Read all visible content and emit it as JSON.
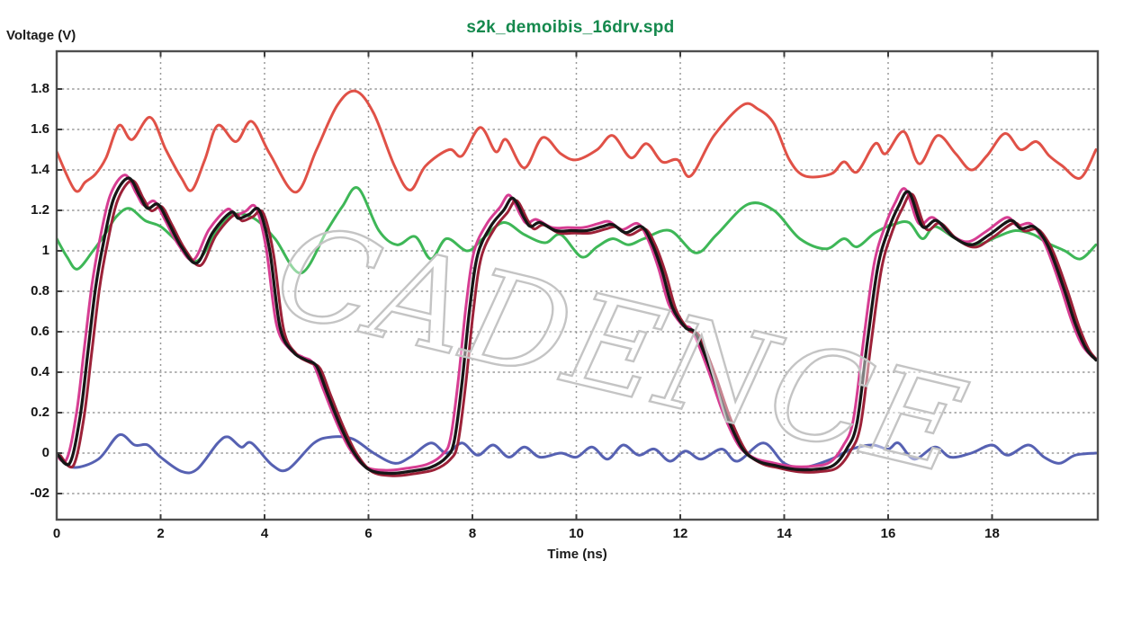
{
  "page": {
    "title": "s2k_demoibis_16drv.spd",
    "y_axis_title": "Voltage (V)",
    "x_axis_title": "Time (ns)",
    "watermark": "CADENCE"
  },
  "colors": {
    "title_green": "#15894d",
    "text": "#1b1b1b",
    "grid": "#8f8f8f",
    "border": "#4f4f4f",
    "watermark_stroke": "#c4c4c4",
    "trace_red": "#e05147",
    "trace_green": "#3eb757",
    "trace_blue": "#5661b2",
    "trace_black": "#161616",
    "trace_magenta": "#d63d92",
    "trace_darkred": "#9c2138"
  },
  "chart_data": {
    "type": "line",
    "title": "s2k_demoibis_16drv.spd",
    "xlabel": "Time (ns)",
    "ylabel": "Voltage (V)",
    "x_range": [
      0,
      20.03
    ],
    "y_range": [
      -0.329,
      1.987
    ],
    "grid": true,
    "legend": "none",
    "x_ticks": [
      {
        "label": "0",
        "value": 0
      },
      {
        "label": "2",
        "value": 2
      },
      {
        "label": "4",
        "value": 4
      },
      {
        "label": "6",
        "value": 6
      },
      {
        "label": "8",
        "value": 8
      },
      {
        "label": "10",
        "value": 10
      },
      {
        "label": "12",
        "value": 12
      },
      {
        "label": "14",
        "value": 14
      },
      {
        "label": "16",
        "value": 16
      },
      {
        "label": "18",
        "value": 18
      }
    ],
    "y_ticks": [
      {
        "label": "1.8",
        "value": 1.8
      },
      {
        "label": "1.6",
        "value": 1.6
      },
      {
        "label": "1.4",
        "value": 1.4
      },
      {
        "label": "1.2",
        "value": 1.2
      },
      {
        "label": "1",
        "value": 1.0
      },
      {
        "label": "0.8",
        "value": 0.8
      },
      {
        "label": "0.6",
        "value": 0.6
      },
      {
        "label": "0.4",
        "value": 0.4
      },
      {
        "label": "0.2",
        "value": 0.2
      },
      {
        "label": "0",
        "value": 0.0
      },
      {
        "label": "-02",
        "value": -0.2
      }
    ],
    "series": [
      {
        "name": "red-upper-trace",
        "color": "#e05147",
        "width": 3,
        "points": [
          [
            0,
            1.49
          ],
          [
            0.35,
            1.3
          ],
          [
            0.55,
            1.34
          ],
          [
            0.75,
            1.38
          ],
          [
            0.95,
            1.46
          ],
          [
            1.2,
            1.62
          ],
          [
            1.45,
            1.55
          ],
          [
            1.8,
            1.66
          ],
          [
            2.1,
            1.5
          ],
          [
            2.4,
            1.36
          ],
          [
            2.6,
            1.3
          ],
          [
            2.85,
            1.45
          ],
          [
            3.1,
            1.62
          ],
          [
            3.45,
            1.54
          ],
          [
            3.75,
            1.64
          ],
          [
            4.1,
            1.48
          ],
          [
            4.6,
            1.29
          ],
          [
            5.0,
            1.5
          ],
          [
            5.4,
            1.72
          ],
          [
            5.75,
            1.79
          ],
          [
            6.1,
            1.68
          ],
          [
            6.5,
            1.42
          ],
          [
            6.8,
            1.3
          ],
          [
            7.1,
            1.42
          ],
          [
            7.55,
            1.5
          ],
          [
            7.8,
            1.47
          ],
          [
            8.15,
            1.61
          ],
          [
            8.45,
            1.49
          ],
          [
            8.65,
            1.55
          ],
          [
            9.0,
            1.41
          ],
          [
            9.35,
            1.56
          ],
          [
            9.7,
            1.48
          ],
          [
            10.0,
            1.45
          ],
          [
            10.4,
            1.5
          ],
          [
            10.7,
            1.57
          ],
          [
            11.05,
            1.46
          ],
          [
            11.35,
            1.53
          ],
          [
            11.65,
            1.44
          ],
          [
            11.95,
            1.45
          ],
          [
            12.2,
            1.37
          ],
          [
            12.65,
            1.57
          ],
          [
            13.2,
            1.72
          ],
          [
            13.5,
            1.7
          ],
          [
            13.8,
            1.63
          ],
          [
            14.1,
            1.45
          ],
          [
            14.4,
            1.37
          ],
          [
            14.9,
            1.38
          ],
          [
            15.15,
            1.44
          ],
          [
            15.4,
            1.39
          ],
          [
            15.75,
            1.53
          ],
          [
            15.95,
            1.48
          ],
          [
            16.3,
            1.59
          ],
          [
            16.6,
            1.43
          ],
          [
            16.95,
            1.57
          ],
          [
            17.3,
            1.48
          ],
          [
            17.6,
            1.4
          ],
          [
            17.9,
            1.47
          ],
          [
            18.25,
            1.58
          ],
          [
            18.55,
            1.5
          ],
          [
            18.85,
            1.54
          ],
          [
            19.1,
            1.47
          ],
          [
            19.35,
            1.42
          ],
          [
            19.7,
            1.36
          ],
          [
            20.0,
            1.5
          ]
        ]
      },
      {
        "name": "green-mid-trace",
        "color": "#3eb757",
        "width": 3,
        "points": [
          [
            0,
            1.06
          ],
          [
            0.2,
            0.97
          ],
          [
            0.4,
            0.91
          ],
          [
            0.7,
            1.0
          ],
          [
            0.95,
            1.09
          ],
          [
            1.15,
            1.17
          ],
          [
            1.4,
            1.21
          ],
          [
            1.7,
            1.15
          ],
          [
            2.0,
            1.12
          ],
          [
            2.3,
            1.05
          ],
          [
            2.7,
            0.95
          ],
          [
            3.1,
            1.11
          ],
          [
            3.4,
            1.18
          ],
          [
            3.8,
            1.16
          ],
          [
            4.2,
            1.06
          ],
          [
            4.7,
            0.89
          ],
          [
            5.2,
            1.1
          ],
          [
            5.5,
            1.22
          ],
          [
            5.8,
            1.31
          ],
          [
            6.2,
            1.1
          ],
          [
            6.55,
            1.03
          ],
          [
            6.9,
            1.07
          ],
          [
            7.2,
            0.96
          ],
          [
            7.5,
            1.06
          ],
          [
            7.9,
            1.0
          ],
          [
            8.2,
            1.06
          ],
          [
            8.6,
            1.14
          ],
          [
            9.0,
            1.08
          ],
          [
            9.4,
            1.04
          ],
          [
            9.7,
            1.08
          ],
          [
            10.1,
            0.97
          ],
          [
            10.4,
            1.02
          ],
          [
            10.7,
            1.06
          ],
          [
            11.0,
            1.03
          ],
          [
            11.3,
            1.06
          ],
          [
            11.8,
            1.1
          ],
          [
            12.3,
            0.99
          ],
          [
            12.7,
            1.08
          ],
          [
            13.3,
            1.23
          ],
          [
            13.8,
            1.2
          ],
          [
            14.3,
            1.06
          ],
          [
            14.8,
            1.01
          ],
          [
            15.15,
            1.06
          ],
          [
            15.4,
            1.02
          ],
          [
            15.75,
            1.09
          ],
          [
            16.1,
            1.13
          ],
          [
            16.4,
            1.14
          ],
          [
            16.66,
            1.06
          ],
          [
            16.9,
            1.12
          ],
          [
            17.3,
            1.06
          ],
          [
            17.7,
            1.03
          ],
          [
            18.1,
            1.07
          ],
          [
            18.45,
            1.1
          ],
          [
            18.8,
            1.08
          ],
          [
            19.05,
            1.04
          ],
          [
            19.4,
            1.0
          ],
          [
            19.7,
            0.96
          ],
          [
            20.0,
            1.03
          ]
        ]
      },
      {
        "name": "blue-near-zero-trace",
        "color": "#5661b2",
        "width": 3,
        "points": [
          [
            0,
            0.0
          ],
          [
            0.3,
            -0.07
          ],
          [
            0.8,
            -0.03
          ],
          [
            1.2,
            0.09
          ],
          [
            1.5,
            0.04
          ],
          [
            1.75,
            0.04
          ],
          [
            2.0,
            -0.02
          ],
          [
            2.4,
            -0.09
          ],
          [
            2.7,
            -0.08
          ],
          [
            3.1,
            0.05
          ],
          [
            3.3,
            0.08
          ],
          [
            3.55,
            0.03
          ],
          [
            3.75,
            0.05
          ],
          [
            4.15,
            -0.06
          ],
          [
            4.45,
            -0.08
          ],
          [
            4.95,
            0.05
          ],
          [
            5.3,
            0.08
          ],
          [
            5.7,
            0.07
          ],
          [
            6.1,
            0.0
          ],
          [
            6.5,
            -0.05
          ],
          [
            6.8,
            -0.02
          ],
          [
            7.2,
            0.05
          ],
          [
            7.5,
            0.0
          ],
          [
            7.8,
            0.05
          ],
          [
            8.1,
            -0.01
          ],
          [
            8.4,
            0.04
          ],
          [
            8.7,
            -0.02
          ],
          [
            9.0,
            0.03
          ],
          [
            9.3,
            -0.02
          ],
          [
            9.7,
            0.0
          ],
          [
            10.0,
            -0.02
          ],
          [
            10.3,
            0.03
          ],
          [
            10.6,
            -0.03
          ],
          [
            10.9,
            0.04
          ],
          [
            11.2,
            -0.01
          ],
          [
            11.5,
            0.02
          ],
          [
            11.8,
            -0.04
          ],
          [
            12.1,
            0.01
          ],
          [
            12.4,
            -0.03
          ],
          [
            12.8,
            0.02
          ],
          [
            13.1,
            -0.04
          ],
          [
            13.6,
            0.05
          ],
          [
            14.0,
            -0.05
          ],
          [
            14.4,
            -0.07
          ],
          [
            14.9,
            -0.03
          ],
          [
            15.3,
            0.02
          ],
          [
            15.7,
            0.04
          ],
          [
            16.0,
            0.02
          ],
          [
            16.2,
            0.05
          ],
          [
            16.5,
            -0.03
          ],
          [
            16.9,
            0.03
          ],
          [
            17.2,
            -0.02
          ],
          [
            17.6,
            0.0
          ],
          [
            18.0,
            0.04
          ],
          [
            18.3,
            -0.01
          ],
          [
            18.7,
            0.04
          ],
          [
            19.0,
            -0.02
          ],
          [
            19.3,
            -0.05
          ],
          [
            19.6,
            -0.01
          ],
          [
            20.0,
            0.0
          ]
        ]
      },
      {
        "name": "switching-bundle",
        "strokes": [
          {
            "color": "#d63d92",
            "dt": -0.07,
            "dv": 0.015,
            "width": 3
          },
          {
            "color": "#9c2138",
            "dt": 0.07,
            "dv": -0.012,
            "width": 3
          },
          {
            "color": "#161616",
            "dt": 0,
            "dv": 0,
            "width": 3.3
          }
        ],
        "points": [
          [
            0,
            0.0
          ],
          [
            0.25,
            -0.05
          ],
          [
            0.45,
            0.18
          ],
          [
            0.6,
            0.5
          ],
          [
            0.75,
            0.82
          ],
          [
            0.9,
            1.04
          ],
          [
            1.1,
            1.26
          ],
          [
            1.38,
            1.36
          ],
          [
            1.6,
            1.27
          ],
          [
            1.75,
            1.21
          ],
          [
            1.95,
            1.23
          ],
          [
            2.15,
            1.14
          ],
          [
            2.4,
            1.02
          ],
          [
            2.7,
            0.94
          ],
          [
            3.0,
            1.09
          ],
          [
            3.35,
            1.19
          ],
          [
            3.5,
            1.16
          ],
          [
            3.7,
            1.18
          ],
          [
            3.9,
            1.2
          ],
          [
            4.1,
            1.0
          ],
          [
            4.3,
            0.62
          ],
          [
            4.55,
            0.5
          ],
          [
            4.8,
            0.46
          ],
          [
            5.0,
            0.43
          ],
          [
            5.2,
            0.3
          ],
          [
            5.45,
            0.14
          ],
          [
            5.7,
            0.01
          ],
          [
            6.0,
            -0.08
          ],
          [
            6.4,
            -0.1
          ],
          [
            6.8,
            -0.09
          ],
          [
            7.2,
            -0.07
          ],
          [
            7.5,
            -0.02
          ],
          [
            7.65,
            0.06
          ],
          [
            7.8,
            0.35
          ],
          [
            7.95,
            0.72
          ],
          [
            8.1,
            0.98
          ],
          [
            8.35,
            1.12
          ],
          [
            8.6,
            1.2
          ],
          [
            8.78,
            1.26
          ],
          [
            9.0,
            1.16
          ],
          [
            9.12,
            1.12
          ],
          [
            9.3,
            1.14
          ],
          [
            9.6,
            1.1
          ],
          [
            9.9,
            1.1
          ],
          [
            10.2,
            1.1
          ],
          [
            10.5,
            1.12
          ],
          [
            10.7,
            1.13
          ],
          [
            10.95,
            1.09
          ],
          [
            11.25,
            1.12
          ],
          [
            11.45,
            1.04
          ],
          [
            11.65,
            0.9
          ],
          [
            11.85,
            0.72
          ],
          [
            12.1,
            0.62
          ],
          [
            12.3,
            0.59
          ],
          [
            12.6,
            0.4
          ],
          [
            12.9,
            0.18
          ],
          [
            13.2,
            0.02
          ],
          [
            13.5,
            -0.04
          ],
          [
            13.8,
            -0.06
          ],
          [
            14.2,
            -0.08
          ],
          [
            14.6,
            -0.08
          ],
          [
            14.95,
            -0.06
          ],
          [
            15.2,
            0.02
          ],
          [
            15.4,
            0.15
          ],
          [
            15.6,
            0.55
          ],
          [
            15.8,
            0.92
          ],
          [
            16.0,
            1.1
          ],
          [
            16.2,
            1.22
          ],
          [
            16.4,
            1.29
          ],
          [
            16.66,
            1.12
          ],
          [
            16.93,
            1.15
          ],
          [
            17.25,
            1.07
          ],
          [
            17.6,
            1.03
          ],
          [
            17.95,
            1.08
          ],
          [
            18.35,
            1.15
          ],
          [
            18.55,
            1.11
          ],
          [
            18.8,
            1.12
          ],
          [
            19.0,
            1.06
          ],
          [
            19.15,
            0.98
          ],
          [
            19.4,
            0.8
          ],
          [
            19.6,
            0.64
          ],
          [
            19.8,
            0.52
          ],
          [
            20.0,
            0.46
          ]
        ]
      }
    ]
  }
}
